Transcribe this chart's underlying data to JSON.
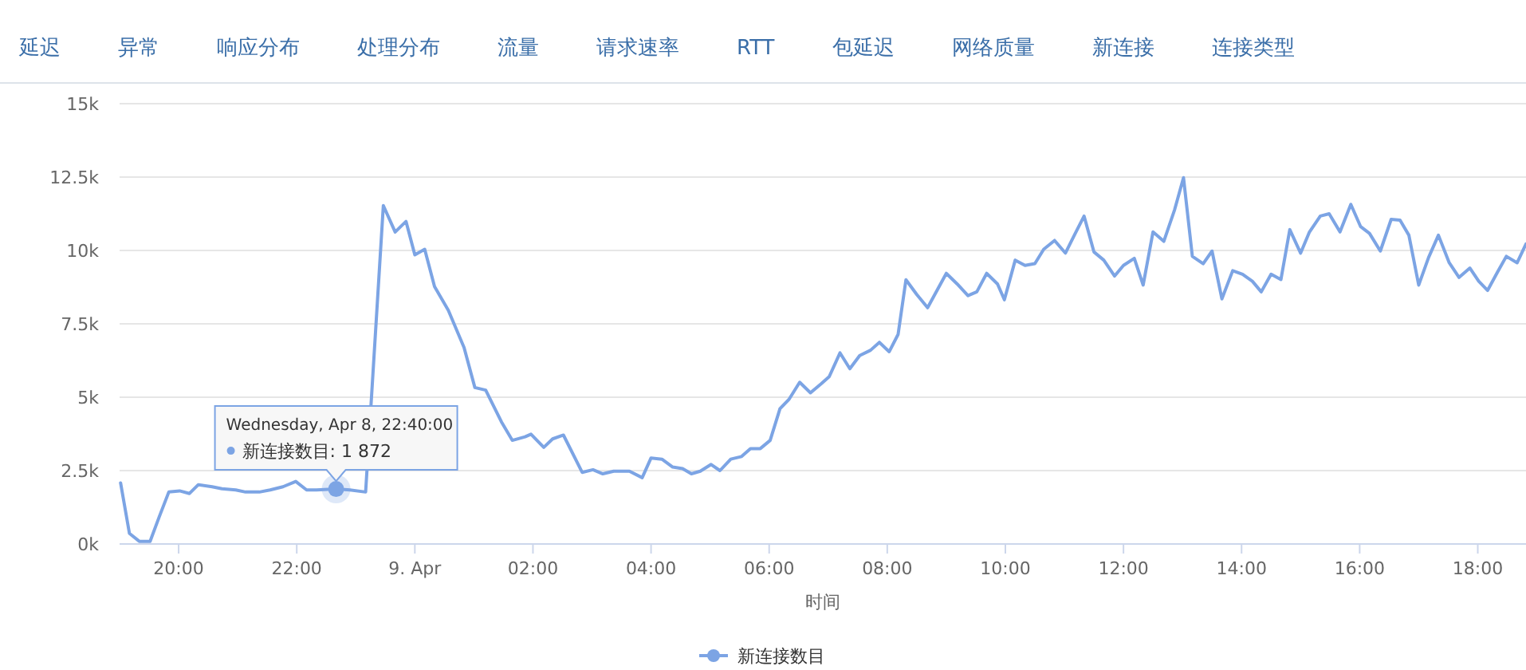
{
  "chart_data": {
    "type": "line",
    "xlabel": "时间",
    "grid": "y",
    "legend": "bottom",
    "series": [
      {
        "name": "新连接数目",
        "color": "#7ca4e4",
        "x": [
          "--04-08T19:01",
          "--04-08T19:10",
          "--04-08T19:20",
          "--04-08T19:31",
          "--04-08T19:40",
          "--04-08T19:50",
          "--04-08T20:01",
          "--04-08T20:11",
          "--04-08T20:20",
          "--04-08T20:34",
          "--04-08T20:44",
          "--04-08T20:58",
          "--04-08T21:08",
          "--04-08T21:22",
          "--04-08T21:33",
          "--04-08T21:46",
          "--04-08T21:59",
          "--04-08T22:10",
          "--04-08T22:20",
          "--04-08T22:40",
          "--04-08T22:54",
          "--04-08T23:10",
          "--04-08T23:28",
          "--04-08T23:40",
          "--04-08T23:51",
          "--04-09T00:00",
          "--04-09T00:10",
          "--04-09T00:20",
          "--04-09T00:34",
          "--04-09T00:50",
          "--04-09T01:01",
          "--04-09T01:12",
          "--04-09T01:28",
          "--04-09T01:39",
          "--04-09T01:52",
          "--04-09T01:58",
          "--04-09T02:11",
          "--04-09T02:20",
          "--04-09T02:31",
          "--04-09T02:50",
          "--04-09T03:01",
          "--04-09T03:11",
          "--04-09T03:22",
          "--04-09T03:38",
          "--04-09T03:51",
          "--04-09T04:00",
          "--04-09T04:11",
          "--04-09T04:22",
          "--04-09T04:32",
          "--04-09T04:41",
          "--04-09T04:50",
          "--04-09T05:01",
          "--04-09T05:10",
          "--04-09T05:21",
          "--04-09T05:32",
          "--04-09T05:41",
          "--04-09T05:51",
          "--04-09T06:01",
          "--04-09T06:11",
          "--04-09T06:20",
          "--04-09T06:31",
          "--04-09T06:42",
          "--04-09T06:53",
          "--04-09T07:01",
          "--04-09T07:12",
          "--04-09T07:22",
          "--04-09T07:32",
          "--04-09T07:43",
          "--04-09T07:52",
          "--04-09T08:02",
          "--04-09T08:11",
          "--04-09T08:19",
          "--04-09T08:30",
          "--04-09T08:41",
          "--04-09T09:00",
          "--04-09T09:11",
          "--04-09T09:22",
          "--04-09T09:31",
          "--04-09T09:41",
          "--04-09T09:52",
          "--04-09T09:59",
          "--04-09T10:10",
          "--04-09T10:20",
          "--04-09T10:30",
          "--04-09T10:39",
          "--04-09T10:50",
          "--04-09T11:01",
          "--04-09T11:11",
          "--04-09T11:20",
          "--04-09T11:30",
          "--04-09T11:40",
          "--04-09T11:51",
          "--04-09T12:00",
          "--04-09T12:11",
          "--04-09T12:20",
          "--04-09T12:30",
          "--04-09T12:41",
          "--04-09T12:52",
          "--04-09T13:01",
          "--04-09T13:10",
          "--04-09T13:21",
          "--04-09T13:30",
          "--04-09T13:40",
          "--04-09T13:51",
          "--04-09T14:01",
          "--04-09T14:11",
          "--04-09T14:20",
          "--04-09T14:30",
          "--04-09T14:40",
          "--04-09T14:49",
          "--04-09T15:00",
          "--04-09T15:09",
          "--04-09T15:20",
          "--04-09T15:29",
          "--04-09T15:40",
          "--04-09T15:51",
          "--04-09T16:01",
          "--04-09T16:10",
          "--04-09T16:21",
          "--04-09T16:32",
          "--04-09T16:41",
          "--04-09T16:50",
          "--04-09T17:00",
          "--04-09T17:10",
          "--04-09T17:20",
          "--04-09T17:31",
          "--04-09T17:41",
          "--04-09T17:52",
          "--04-09T18:01",
          "--04-09T18:10",
          "--04-09T18:20",
          "--04-09T18:29",
          "--04-09T18:40",
          "--04-09T18:49"
        ],
        "values": [
          2080,
          360,
          90,
          90,
          900,
          1770,
          1810,
          1720,
          2020,
          1950,
          1880,
          1840,
          1770,
          1770,
          1840,
          1950,
          2130,
          1840,
          1840,
          1872,
          1840,
          1770,
          11530,
          10630,
          10990,
          9850,
          10040,
          8770,
          7960,
          6690,
          5330,
          5240,
          4160,
          3530,
          3650,
          3740,
          3290,
          3580,
          3710,
          2440,
          2530,
          2390,
          2480,
          2480,
          2260,
          2930,
          2890,
          2620,
          2570,
          2390,
          2480,
          2710,
          2500,
          2890,
          2980,
          3250,
          3250,
          3530,
          4610,
          4920,
          5510,
          5150,
          5460,
          5700,
          6510,
          5970,
          6420,
          6600,
          6870,
          6550,
          7140,
          9000,
          8500,
          8050,
          9220,
          8860,
          8460,
          8590,
          9220,
          8860,
          8320,
          9670,
          9490,
          9550,
          10040,
          10340,
          9910,
          10580,
          11170,
          9950,
          9670,
          9130,
          9490,
          9730,
          8820,
          10630,
          10310,
          11390,
          12480,
          9800,
          9550,
          9980,
          8350,
          9310,
          9190,
          8950,
          8590,
          9190,
          9010,
          10710,
          9910,
          10630,
          11170,
          11250,
          10630,
          11570,
          10810,
          10580,
          9980,
          11060,
          11030,
          10520,
          8820,
          9760,
          10520,
          9580,
          9080,
          9400,
          8950,
          8640,
          9260,
          9800,
          9580,
          10220
        ]
      }
    ],
    "xlim": [
      "--04-08T19:00",
      "--04-09T18:49"
    ],
    "xticks": [
      {
        "value": "--04-08T20:00",
        "label": "20:00"
      },
      {
        "value": "--04-08T22:00",
        "label": "22:00"
      },
      {
        "value": "--04-09T00:00",
        "label": "9. Apr"
      },
      {
        "value": "--04-09T02:00",
        "label": "02:00"
      },
      {
        "value": "--04-09T04:00",
        "label": "04:00"
      },
      {
        "value": "--04-09T06:00",
        "label": "06:00"
      },
      {
        "value": "--04-09T08:00",
        "label": "08:00"
      },
      {
        "value": "--04-09T10:00",
        "label": "10:00"
      },
      {
        "value": "--04-09T12:00",
        "label": "12:00"
      },
      {
        "value": "--04-09T14:00",
        "label": "14:00"
      },
      {
        "value": "--04-09T16:00",
        "label": "16:00"
      },
      {
        "value": "--04-09T18:00",
        "label": "18:00"
      }
    ],
    "ylim": [
      0,
      15000
    ],
    "yticks": [
      {
        "value": 0,
        "label": "0k"
      },
      {
        "value": 2500,
        "label": "2.5k"
      },
      {
        "value": 5000,
        "label": "5k"
      },
      {
        "value": 7500,
        "label": "7.5k"
      },
      {
        "value": 10000,
        "label": "10k"
      },
      {
        "value": 12500,
        "label": "12.5k"
      },
      {
        "value": 15000,
        "label": "15k"
      }
    ],
    "annotations": [
      "延迟",
      "异常",
      "响应分布",
      "处理分布",
      "流量",
      "请求速率",
      "RTT",
      "包延迟",
      "网络质量",
      "新连接",
      "连接类型",
      "Wednesday, Apr 8, 22:40:00",
      {
        "text": "新连接数目: 1 872",
        "x": "--04-08T22:40",
        "y": 1872
      }
    ]
  }
}
